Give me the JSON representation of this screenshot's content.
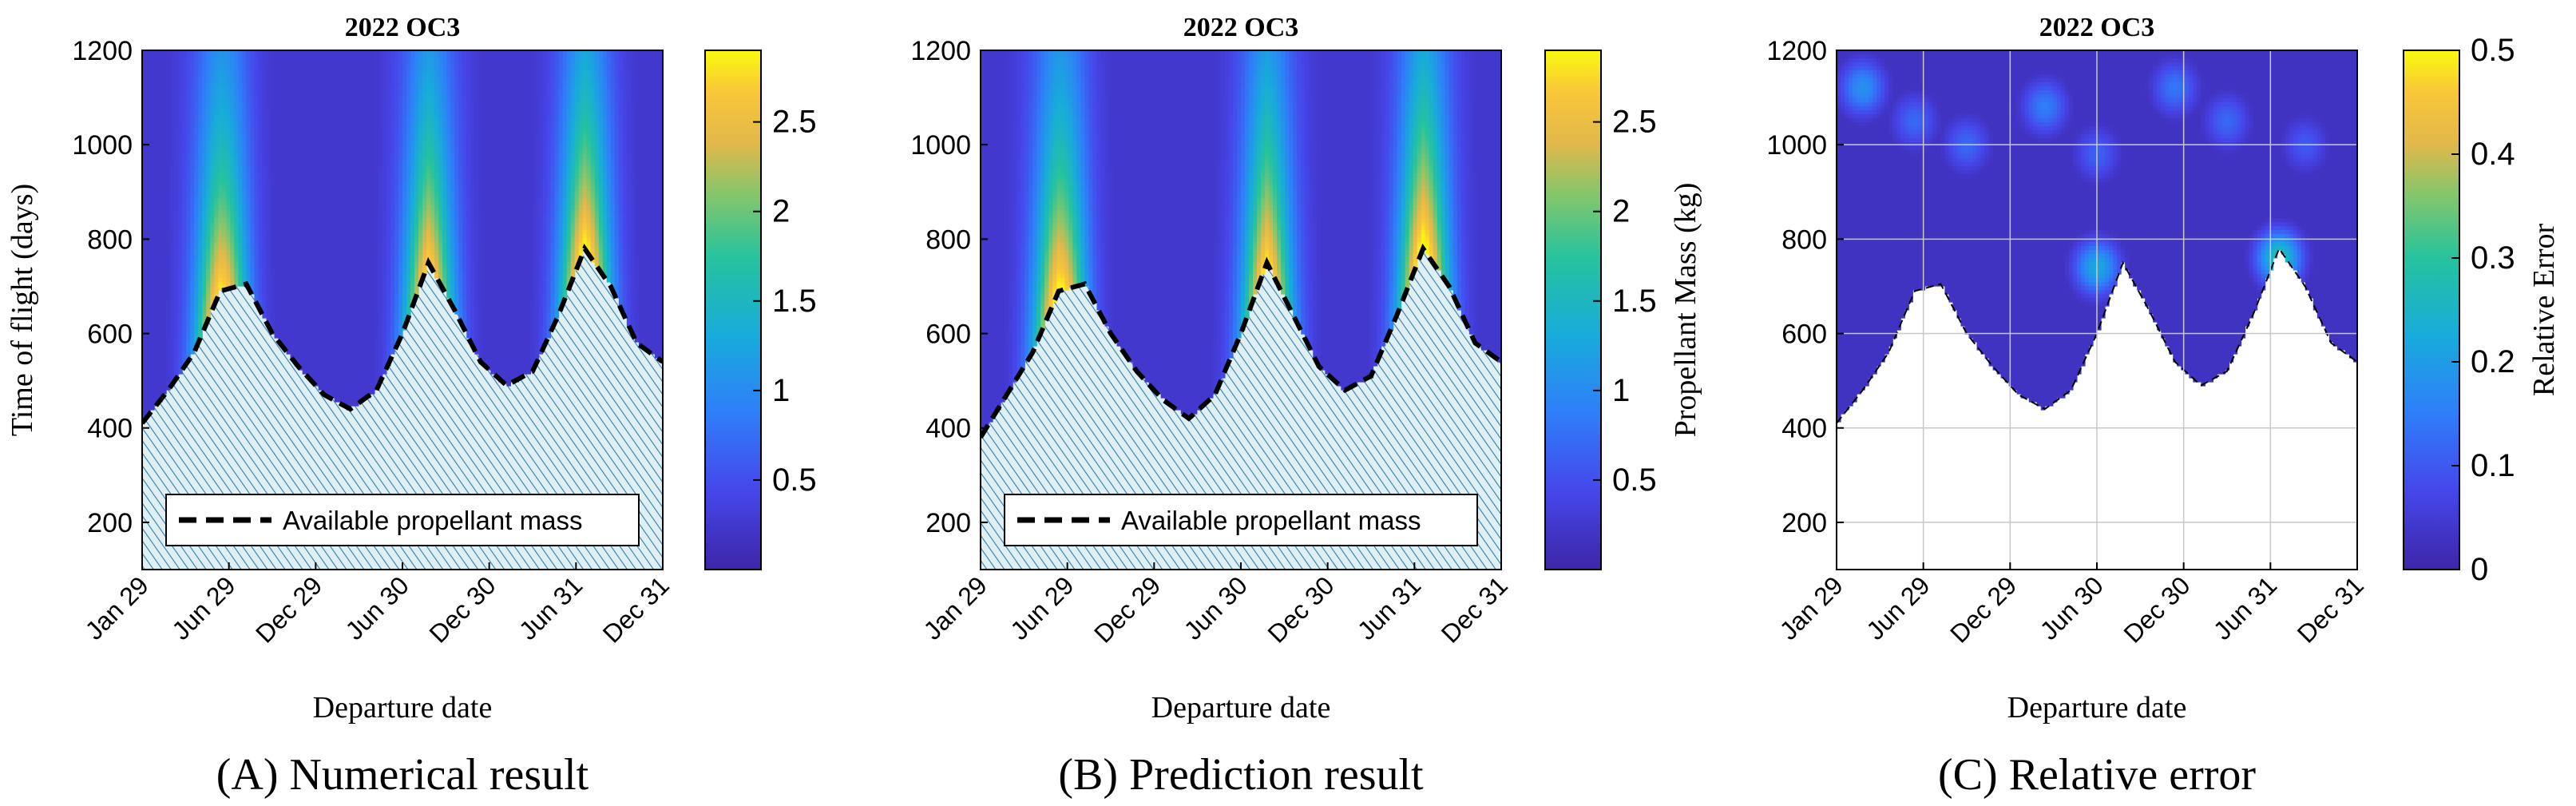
{
  "figure": {
    "panels": [
      "A",
      "B",
      "C"
    ]
  },
  "chart_data": [
    {
      "id": "A",
      "type": "heatmap",
      "subtype": "filled-contour",
      "title": "2022 OC3",
      "caption": "(A) Numerical result",
      "xlabel": "Departure date",
      "ylabel": "Time of flight (days)",
      "x_ticks": [
        "Jan 29",
        "Jun 29",
        "Dec 29",
        "Jun 30",
        "Dec 30",
        "Jun 31",
        "Dec 31"
      ],
      "y_ticks": [
        200,
        400,
        600,
        800,
        1000,
        1200
      ],
      "ylim": [
        100,
        1200
      ],
      "colorbar": {
        "label": "",
        "ticks": [
          0.5,
          1,
          1.5,
          2,
          2.5
        ],
        "range": [
          0,
          2.9
        ]
      },
      "legend": {
        "label": "Available propellant mass",
        "position": "bottom"
      },
      "feasibility_boundary_tof_days": [
        410,
        480,
        560,
        690,
        705,
        600,
        530,
        470,
        440,
        480,
        600,
        750,
        650,
        540,
        490,
        520,
        640,
        780,
        700,
        580,
        540
      ],
      "unfeasible_region": "hatched",
      "ridges": [
        {
          "departure_index": 3,
          "peak_value": 2.4
        },
        {
          "departure_index": 11,
          "peak_value": 2.3
        },
        {
          "departure_index": 17,
          "peak_value": 2.5
        }
      ]
    },
    {
      "id": "B",
      "type": "heatmap",
      "subtype": "filled-contour",
      "title": "2022 OC3",
      "caption": "(B) Prediction result",
      "xlabel": "Departure date",
      "ylabel": "",
      "x_ticks": [
        "Jan 29",
        "Jun 29",
        "Dec 29",
        "Jun 30",
        "Dec 30",
        "Jun 31",
        "Dec 31"
      ],
      "y_ticks": [
        200,
        400,
        600,
        800,
        1000,
        1200
      ],
      "ylim": [
        100,
        1200
      ],
      "colorbar": {
        "label": "Propellant Mass (kg)",
        "ticks": [
          0.5,
          1,
          1.5,
          2,
          2.5
        ],
        "range": [
          0,
          2.9
        ]
      },
      "legend": {
        "label": "Available propellant mass",
        "position": "bottom"
      },
      "feasibility_boundary_tof_days": [
        380,
        470,
        560,
        690,
        705,
        600,
        520,
        460,
        420,
        470,
        600,
        750,
        640,
        530,
        480,
        510,
        640,
        780,
        700,
        580,
        540
      ],
      "unfeasible_region": "hatched",
      "ridges": [
        {
          "departure_index": 3,
          "peak_value": 2.5
        },
        {
          "departure_index": 11,
          "peak_value": 2.4
        },
        {
          "departure_index": 17,
          "peak_value": 2.6
        }
      ]
    },
    {
      "id": "C",
      "type": "heatmap",
      "subtype": "filled-contour",
      "title": "2022 OC3",
      "caption": "(C) Relative error",
      "xlabel": "Departure date",
      "ylabel": "",
      "x_ticks": [
        "Jan 29",
        "Jun 29",
        "Dec 29",
        "Jun 30",
        "Dec 30",
        "Jun 31",
        "Dec 31"
      ],
      "y_ticks": [
        200,
        400,
        600,
        800,
        1000,
        1200
      ],
      "ylim": [
        100,
        1200
      ],
      "grid": true,
      "colorbar": {
        "label": "Relative Error",
        "ticks": [
          0,
          0.1,
          0.2,
          0.3,
          0.4,
          0.5
        ],
        "range": [
          0,
          0.5
        ]
      },
      "feasibility_boundary_tof_days": [
        410,
        480,
        560,
        690,
        705,
        600,
        530,
        470,
        440,
        480,
        600,
        750,
        650,
        540,
        490,
        520,
        640,
        780,
        700,
        580,
        540
      ],
      "error_level_background": 0.03,
      "error_patches": [
        {
          "departure_index": 1,
          "tof_days": 1120,
          "value": 0.18
        },
        {
          "departure_index": 3,
          "tof_days": 1050,
          "value": 0.12
        },
        {
          "departure_index": 5,
          "tof_days": 1000,
          "value": 0.12
        },
        {
          "departure_index": 8,
          "tof_days": 1080,
          "value": 0.15
        },
        {
          "departure_index": 10,
          "tof_days": 980,
          "value": 0.11
        },
        {
          "departure_index": 13,
          "tof_days": 1120,
          "value": 0.14
        },
        {
          "departure_index": 15,
          "tof_days": 1050,
          "value": 0.12
        },
        {
          "departure_index": 18,
          "tof_days": 1000,
          "value": 0.1
        },
        {
          "departure_index": 10,
          "tof_days": 740,
          "value": 0.22
        },
        {
          "departure_index": 17,
          "tof_days": 760,
          "value": 0.28
        }
      ]
    }
  ]
}
